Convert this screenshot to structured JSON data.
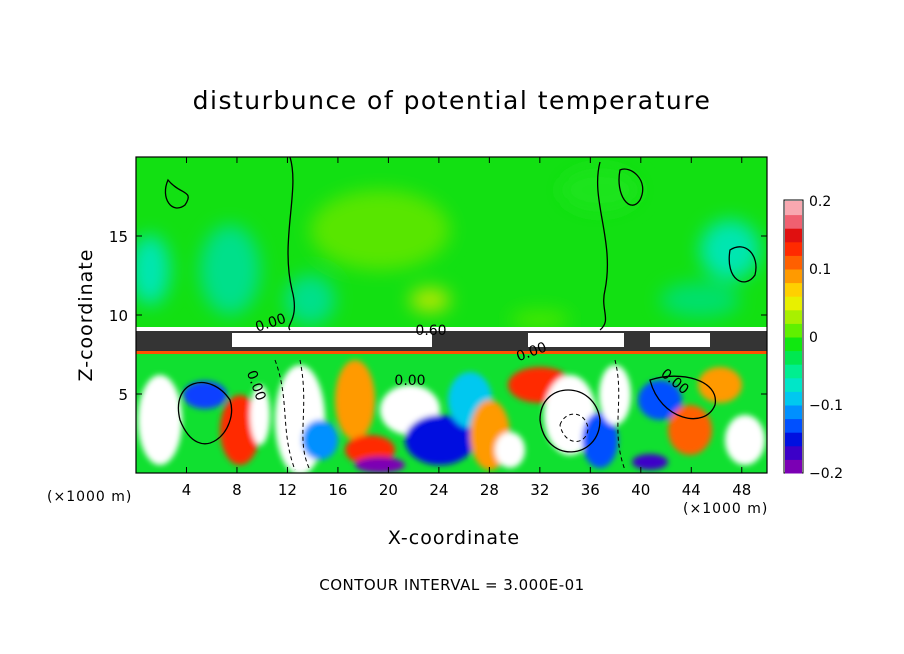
{
  "chart_data": {
    "type": "heatmap",
    "title": "disturbunce of potential temperature",
    "xlabel": "X-coordinate",
    "ylabel": "Z-coordinate",
    "x_unit": "(×1000 m)",
    "x_unit_right": "(×1000 m)",
    "xlim": [
      0,
      50
    ],
    "ylim": [
      0,
      20
    ],
    "xticks": [
      4,
      8,
      12,
      16,
      20,
      24,
      28,
      32,
      36,
      40,
      44,
      48
    ],
    "yticks": [
      5,
      10,
      15
    ],
    "colorbar": {
      "range": [
        -0.2,
        0.2
      ],
      "tick_labels": [
        "0.2",
        "0.1",
        "0",
        "−0.1",
        "−0.2"
      ],
      "tick_values": [
        0.2,
        0.1,
        0,
        -0.1,
        -0.2
      ],
      "colors": [
        "#7b00b4",
        "#3c00c8",
        "#0010e0",
        "#0050ff",
        "#0090ff",
        "#00c8f0",
        "#00e6c8",
        "#00ee90",
        "#00e850",
        "#10e810",
        "#60f000",
        "#a8f000",
        "#e8f000",
        "#ffd000",
        "#ff9a00",
        "#ff6000",
        "#ff2a00",
        "#e01010",
        "#f06070",
        "#f8a8b0"
      ]
    },
    "contour_labels": [
      "0.00",
      "0.60",
      "0.00",
      "0.00",
      "0.00",
      "0.00"
    ],
    "annotation": "CONTOUR INTERVAL = 3.000E-01"
  }
}
